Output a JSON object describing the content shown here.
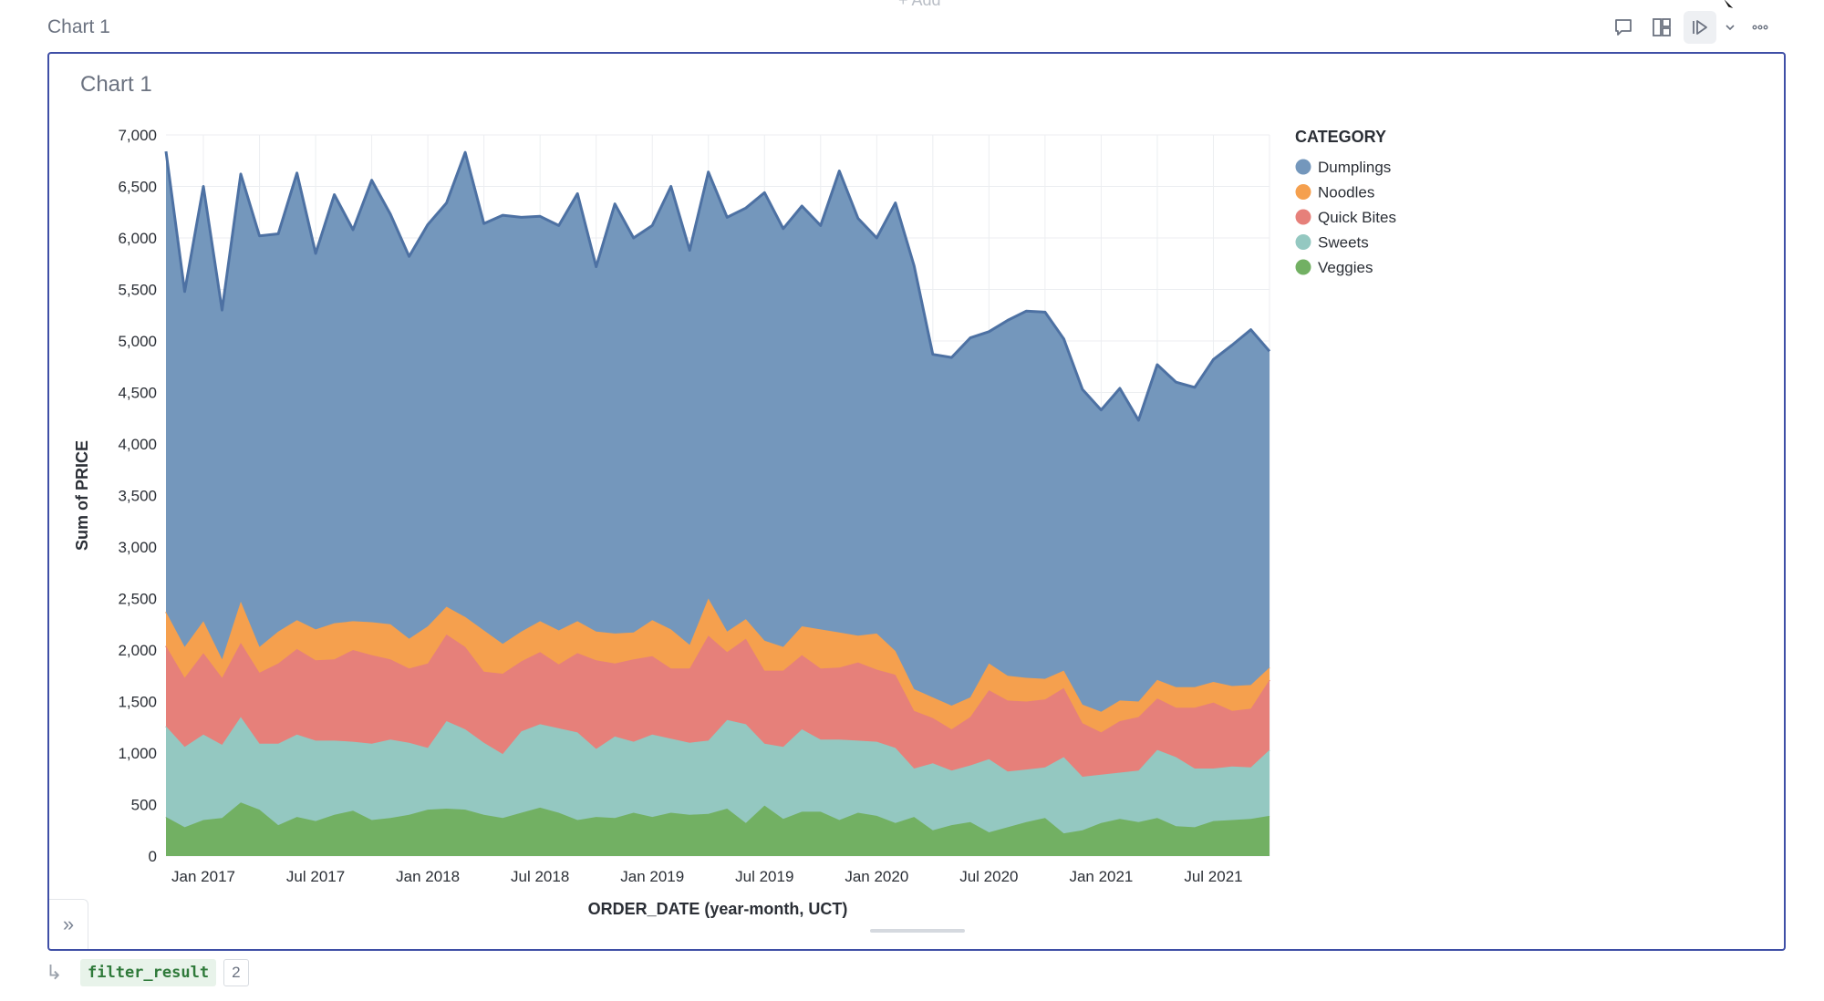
{
  "top_hint": "+ Add",
  "cell": {
    "title": "Chart 1"
  },
  "toolbar": {
    "comment_label": "comment-icon",
    "layout_label": "layout-icon",
    "run_label": "run-icon",
    "dropdown_label": "chevron-down-icon",
    "more_label": "more-icon"
  },
  "output": {
    "var_name": "filter_result",
    "count": "2",
    "arrow": "↳"
  },
  "chart_data": {
    "type": "area",
    "stacked": true,
    "title": "Chart 1",
    "xlabel": "ORDER_DATE (year-month, UCT)",
    "ylabel": "Sum of PRICE",
    "ylim": [
      0,
      7000
    ],
    "yticks": [
      0,
      500,
      1000,
      1500,
      2000,
      2500,
      3000,
      3500,
      4000,
      4500,
      5000,
      5500,
      6000,
      6500,
      7000
    ],
    "ytick_labels": [
      "0",
      "500",
      "1,000",
      "1,500",
      "2,000",
      "2,500",
      "3,000",
      "3,500",
      "4,000",
      "4,500",
      "5,000",
      "5,500",
      "6,000",
      "6,500",
      "7,000"
    ],
    "x_start": "2016-11",
    "n_months": 60,
    "xticks": [
      {
        "index": 2,
        "label": "Jan 2017"
      },
      {
        "index": 8,
        "label": "Jul 2017"
      },
      {
        "index": 14,
        "label": "Jan 2018"
      },
      {
        "index": 20,
        "label": "Jul 2018"
      },
      {
        "index": 26,
        "label": "Jan 2019"
      },
      {
        "index": 32,
        "label": "Jul 2019"
      },
      {
        "index": 38,
        "label": "Jan 2020"
      },
      {
        "index": 44,
        "label": "Jul 2020"
      },
      {
        "index": 50,
        "label": "Jan 2021"
      },
      {
        "index": 56,
        "label": "Jul 2021"
      }
    ],
    "legend_title": "CATEGORY",
    "legend_position": "top-right",
    "series": [
      {
        "name": "Veggies",
        "color": "#72b063",
        "values": [
          380,
          280,
          350,
          370,
          520,
          450,
          300,
          380,
          340,
          400,
          440,
          350,
          370,
          400,
          450,
          460,
          450,
          400,
          370,
          420,
          470,
          420,
          350,
          380,
          370,
          420,
          380,
          420,
          400,
          410,
          460,
          320,
          490,
          360,
          430,
          430,
          350,
          420,
          390,
          320,
          380,
          250,
          300,
          330,
          230,
          280,
          330,
          370,
          220,
          250,
          320,
          360,
          330,
          370,
          290,
          280,
          340,
          350,
          360,
          390
        ]
      },
      {
        "name": "Sweets",
        "color": "#94c8c1",
        "values": [
          880,
          780,
          830,
          710,
          830,
          640,
          790,
          800,
          780,
          720,
          670,
          740,
          760,
          700,
          600,
          850,
          780,
          700,
          620,
          790,
          810,
          820,
          850,
          660,
          790,
          690,
          800,
          720,
          700,
          710,
          860,
          960,
          600,
          700,
          800,
          700,
          780,
          700,
          720,
          730,
          470,
          650,
          530,
          550,
          710,
          540,
          510,
          490,
          740,
          520,
          470,
          450,
          500,
          660,
          670,
          570,
          510,
          520,
          500,
          640
        ]
      },
      {
        "name": "Quick Bites",
        "color": "#e6807a",
        "values": [
          780,
          670,
          790,
          650,
          720,
          690,
          780,
          830,
          780,
          790,
          890,
          860,
          780,
          720,
          820,
          840,
          800,
          690,
          780,
          680,
          700,
          620,
          770,
          860,
          710,
          800,
          760,
          680,
          720,
          1020,
          660,
          830,
          710,
          740,
          720,
          690,
          700,
          760,
          700,
          710,
          560,
          440,
          400,
          470,
          670,
          690,
          660,
          660,
          670,
          520,
          410,
          500,
          520,
          500,
          480,
          590,
          640,
          540,
          570,
          680
        ]
      },
      {
        "name": "Noodles",
        "color": "#f5a04e",
        "values": [
          330,
          300,
          310,
          180,
          400,
          250,
          310,
          280,
          300,
          350,
          280,
          320,
          340,
          290,
          360,
          270,
          290,
          400,
          290,
          290,
          300,
          330,
          310,
          280,
          290,
          260,
          350,
          380,
          230,
          360,
          200,
          190,
          290,
          230,
          280,
          380,
          340,
          260,
          350,
          230,
          210,
          200,
          230,
          190,
          260,
          240,
          230,
          200,
          170,
          180,
          200,
          200,
          150,
          180,
          200,
          200,
          200,
          240,
          230,
          120
        ]
      },
      {
        "name": "Dumplings",
        "color": "#7497bc",
        "values": [
          4470,
          3450,
          4220,
          3390,
          4150,
          3990,
          3860,
          4340,
          3650,
          4160,
          3800,
          4290,
          3980,
          3710,
          3900,
          3920,
          4510,
          3950,
          4160,
          4020,
          3930,
          3930,
          4150,
          3540,
          4170,
          3830,
          3830,
          4300,
          3830,
          4140,
          4020,
          3990,
          4350,
          4060,
          4080,
          3920,
          4480,
          4050,
          3840,
          4350,
          4110,
          3330,
          3380,
          3490,
          3220,
          3450,
          3560,
          3560,
          3220,
          3060,
          2930,
          3030,
          2730,
          3060,
          2960,
          2910,
          3130,
          3310,
          3450,
          3070
        ]
      }
    ]
  }
}
